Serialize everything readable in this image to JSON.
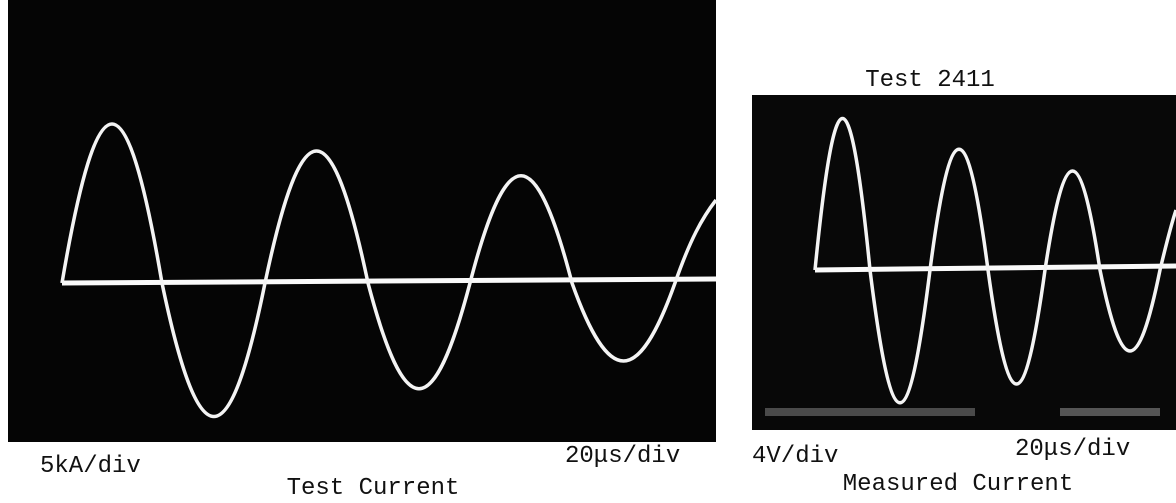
{
  "left_panel": {
    "vertical_scale": "5kA/div",
    "horizontal_scale": "20μs/div",
    "caption": "Test Current"
  },
  "right_panel": {
    "title": "Test 2411",
    "vertical_scale": "4V/div",
    "horizontal_scale": "20μs/div",
    "caption": "Measured Current"
  }
}
